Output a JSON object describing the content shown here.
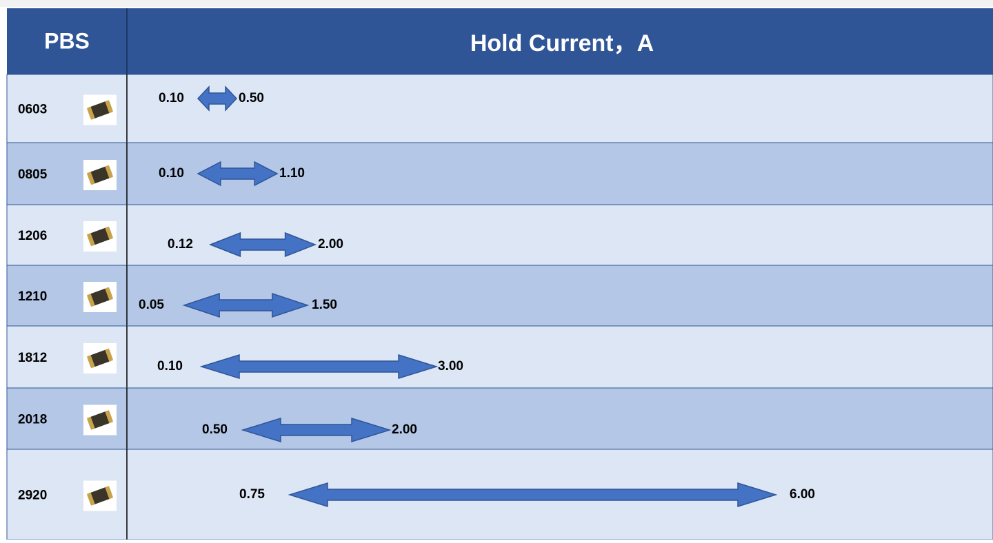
{
  "header": {
    "col1": "PBS",
    "col2": "Hold Current，A"
  },
  "table": {
    "rows": [
      [
        "0603",
        "0.10",
        "0.50"
      ],
      [
        "0805",
        "0.10",
        "1.10"
      ],
      [
        "1206",
        "0.12",
        "2.00"
      ],
      [
        "1210",
        "0.05",
        "1.50"
      ],
      [
        "1812",
        "0.10",
        "3.00"
      ],
      [
        "2018",
        "0.50",
        "2.00"
      ],
      [
        "2920",
        "0.75",
        "6.00"
      ]
    ]
  }
}
